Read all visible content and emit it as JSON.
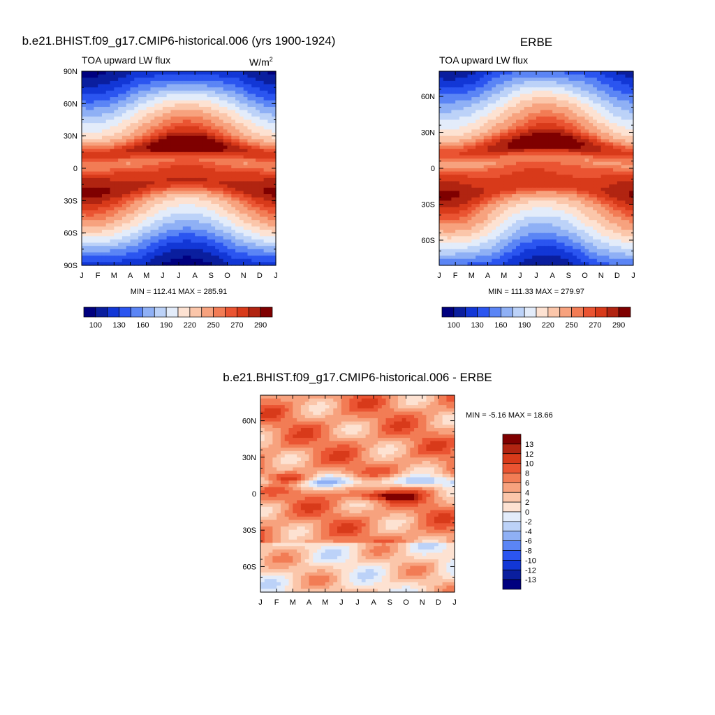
{
  "chart_data": [
    {
      "type": "heatmap",
      "title": "b.e21.BHIST.f09_g17.CMIP6-historical.006 (yrs 1900-1924)",
      "left_label": "TOA upward LW flux",
      "units": "W/m",
      "units_superscript": "2",
      "x": [
        "J",
        "F",
        "M",
        "A",
        "M",
        "J",
        "J",
        "A",
        "S",
        "O",
        "N",
        "D",
        "J"
      ],
      "y_ticks": [
        "90N",
        "60N",
        "30N",
        "0",
        "30S",
        "60S",
        "90S"
      ],
      "stats": "MIN = 112.41 MAX = 285.91",
      "colorbar_labels": [
        "100",
        "130",
        "160",
        "190",
        "220",
        "250",
        "270",
        "290"
      ],
      "colorbar_colors": [
        "#00007f",
        "#0a1e9e",
        "#1237d6",
        "#2b55f0",
        "#5b85f5",
        "#8fb0f5",
        "#bcd2f8",
        "#e3ecfa",
        "#fde2d2",
        "#fbc6aa",
        "#f7a27e",
        "#f27c55",
        "#ea5432",
        "#d83a1a",
        "#b12411",
        "#7f0000"
      ],
      "values_min": 112.41,
      "values_max": 285.91
    },
    {
      "type": "heatmap",
      "title": "ERBE",
      "left_label": "TOA upward LW flux",
      "x": [
        "J",
        "F",
        "M",
        "A",
        "M",
        "J",
        "J",
        "A",
        "S",
        "O",
        "N",
        "D",
        "J"
      ],
      "y_ticks": [
        "60N",
        "30N",
        "0",
        "30S",
        "60S"
      ],
      "stats": "MIN = 111.33 MAX = 279.97",
      "colorbar_labels": [
        "100",
        "130",
        "160",
        "190",
        "220",
        "250",
        "270",
        "290"
      ],
      "values_min": 111.33,
      "values_max": 279.97
    },
    {
      "type": "heatmap",
      "title": "b.e21.BHIST.f09_g17.CMIP6-historical.006 - ERBE",
      "x": [
        "J",
        "F",
        "M",
        "A",
        "M",
        "J",
        "J",
        "A",
        "S",
        "O",
        "N",
        "D",
        "J"
      ],
      "y_ticks": [
        "60N",
        "30N",
        "0",
        "30S",
        "60S"
      ],
      "stats": "MIN =  -5.16 MAX =  18.66",
      "colorbar_labels": [
        "13",
        "12",
        "10",
        "8",
        "6",
        "4",
        "2",
        "0",
        "-2",
        "-4",
        "-6",
        "-8",
        "-10",
        "-12",
        "-13"
      ],
      "colorbar_colors": [
        "#7f0000",
        "#b12411",
        "#d83a1a",
        "#ea5432",
        "#f27c55",
        "#f7a27e",
        "#fbc6aa",
        "#fde2d2",
        "#e3ecfa",
        "#bcd2f8",
        "#8fb0f5",
        "#5b85f5",
        "#2b55f0",
        "#1237d6",
        "#0a1e9e",
        "#00007f"
      ],
      "values_min": -5.16,
      "values_max": 18.66
    }
  ]
}
